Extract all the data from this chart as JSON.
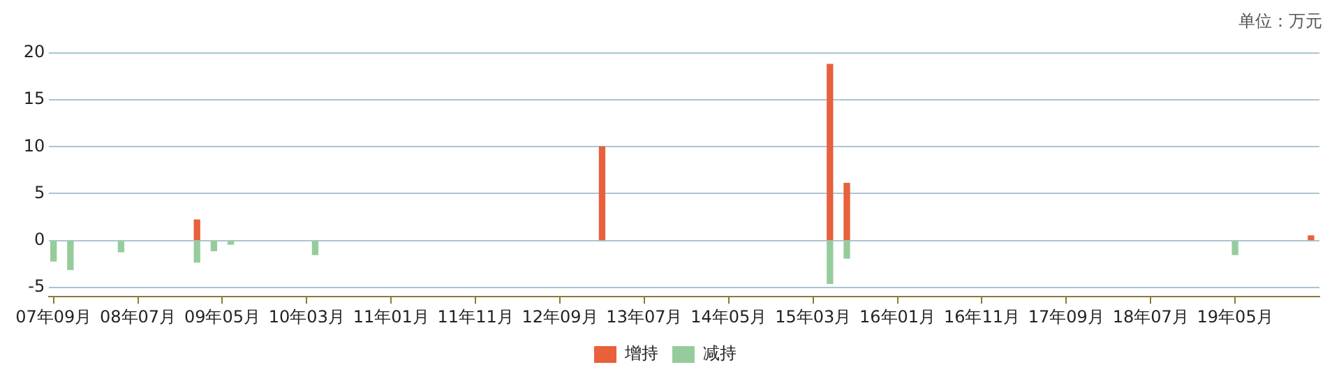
{
  "chart_data": {
    "type": "bar",
    "stacked": true,
    "annotations": [
      "单位：万元"
    ],
    "xlim": [
      "2007-08-15",
      "2020-03-01"
    ],
    "xticks": [
      {
        "value": "2007-09",
        "label": "07年09月"
      },
      {
        "value": "2008-07",
        "label": "08年07月"
      },
      {
        "value": "2009-05",
        "label": "09年05月"
      },
      {
        "value": "2010-03",
        "label": "10年03月"
      },
      {
        "value": "2011-01",
        "label": "11年01月"
      },
      {
        "value": "2011-11",
        "label": "11年11月"
      },
      {
        "value": "2012-09",
        "label": "12年09月"
      },
      {
        "value": "2013-07",
        "label": "13年07月"
      },
      {
        "value": "2014-05",
        "label": "14年05月"
      },
      {
        "value": "2015-03",
        "label": "15年03月"
      },
      {
        "value": "2016-01",
        "label": "16年01月"
      },
      {
        "value": "2016-11",
        "label": "16年11月"
      },
      {
        "value": "2017-09",
        "label": "17年09月"
      },
      {
        "value": "2018-07",
        "label": "18年07月"
      },
      {
        "value": "2019-05",
        "label": "19年05月"
      }
    ],
    "ylim": [
      -6,
      20
    ],
    "yticks": [
      -5,
      0,
      5,
      10,
      15,
      20
    ],
    "grid": "y",
    "legend": "bottom",
    "series": [
      {
        "name": "增持",
        "color": "#e8603c",
        "x": [
          "2009-02",
          "2013-02",
          "2015-05",
          "2015-07",
          "2020-02"
        ],
        "values": [
          2.2,
          10,
          18.8,
          6.1,
          0.5
        ]
      },
      {
        "name": "减持",
        "color": "#96cc9c",
        "x": [
          "2007-09",
          "2007-11",
          "2008-05",
          "2009-02",
          "2009-04",
          "2009-06",
          "2010-04",
          "2015-05",
          "2015-07",
          "2019-05"
        ],
        "values": [
          -2.2,
          -3.1,
          -1.2,
          -2.3,
          -1.1,
          -0.4,
          -1.5,
          -4.6,
          -1.9,
          -1.5
        ]
      }
    ]
  }
}
